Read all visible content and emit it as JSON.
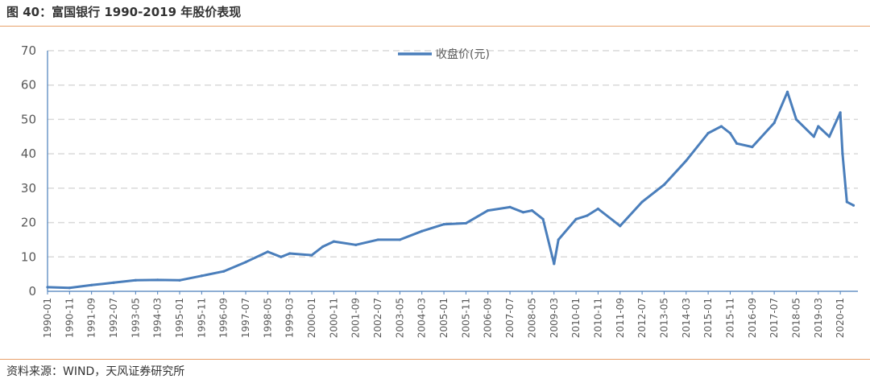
{
  "title": "图 40：富国银行 1990-2019 年股价表现",
  "source": "资料来源：WIND，天风证券研究所",
  "colors": {
    "series": "#4a7ebb",
    "grid": "#d9d9d9",
    "rule": "#e8a16b",
    "axis": "#4a7ebb"
  },
  "chart_data": {
    "type": "line",
    "legend_position": "top-center",
    "grid": true,
    "ylim": [
      0,
      70
    ],
    "yticks": [
      0,
      10,
      20,
      30,
      40,
      50,
      60,
      70
    ],
    "xticks": [
      "1990-01",
      "1990-11",
      "1991-09",
      "1992-07",
      "1993-05",
      "1994-03",
      "1995-01",
      "1995-11",
      "1996-09",
      "1997-07",
      "1998-05",
      "1999-03",
      "2000-01",
      "2000-11",
      "2001-09",
      "2002-07",
      "2003-05",
      "2004-03",
      "2005-01",
      "2005-11",
      "2006-09",
      "2007-07",
      "2008-05",
      "2009-03",
      "2010-01",
      "2010-11",
      "2011-09",
      "2012-07",
      "2013-05",
      "2014-03",
      "2015-01",
      "2015-11",
      "2016-09",
      "2017-07",
      "2018-05",
      "2019-03",
      "2020-01"
    ],
    "series": [
      {
        "name": "收盘价(元)",
        "x": [
          "1990-01",
          "1990-11",
          "1991-09",
          "1992-07",
          "1993-05",
          "1994-03",
          "1995-01",
          "1995-11",
          "1996-09",
          "1997-07",
          "1998-05",
          "1998-11",
          "1999-03",
          "2000-01",
          "2000-06",
          "2000-11",
          "2001-09",
          "2002-07",
          "2003-05",
          "2004-03",
          "2005-01",
          "2005-11",
          "2006-09",
          "2007-07",
          "2008-01",
          "2008-05",
          "2008-10",
          "2009-03",
          "2009-05",
          "2010-01",
          "2010-06",
          "2010-11",
          "2011-09",
          "2012-07",
          "2013-05",
          "2014-03",
          "2015-01",
          "2015-07",
          "2015-11",
          "2016-02",
          "2016-09",
          "2017-07",
          "2018-01",
          "2018-05",
          "2019-01",
          "2019-03",
          "2019-08",
          "2020-01",
          "2020-02",
          "2020-04",
          "2020-07"
        ],
        "y": [
          1.2,
          1.0,
          1.8,
          2.5,
          3.2,
          3.3,
          3.2,
          4.5,
          5.8,
          8.5,
          11.5,
          10.0,
          11.0,
          10.5,
          13.0,
          14.5,
          13.5,
          15.0,
          15.0,
          17.5,
          19.5,
          19.8,
          23.5,
          24.5,
          23.0,
          23.5,
          21.0,
          8.0,
          15.0,
          21.0,
          22.0,
          24.0,
          19.0,
          26.0,
          31.0,
          38.0,
          46.0,
          48.0,
          46.0,
          43.0,
          42.0,
          49.0,
          58.0,
          50.0,
          45.0,
          48.0,
          45.0,
          52.0,
          40.0,
          26.0,
          25.0
        ]
      }
    ]
  }
}
